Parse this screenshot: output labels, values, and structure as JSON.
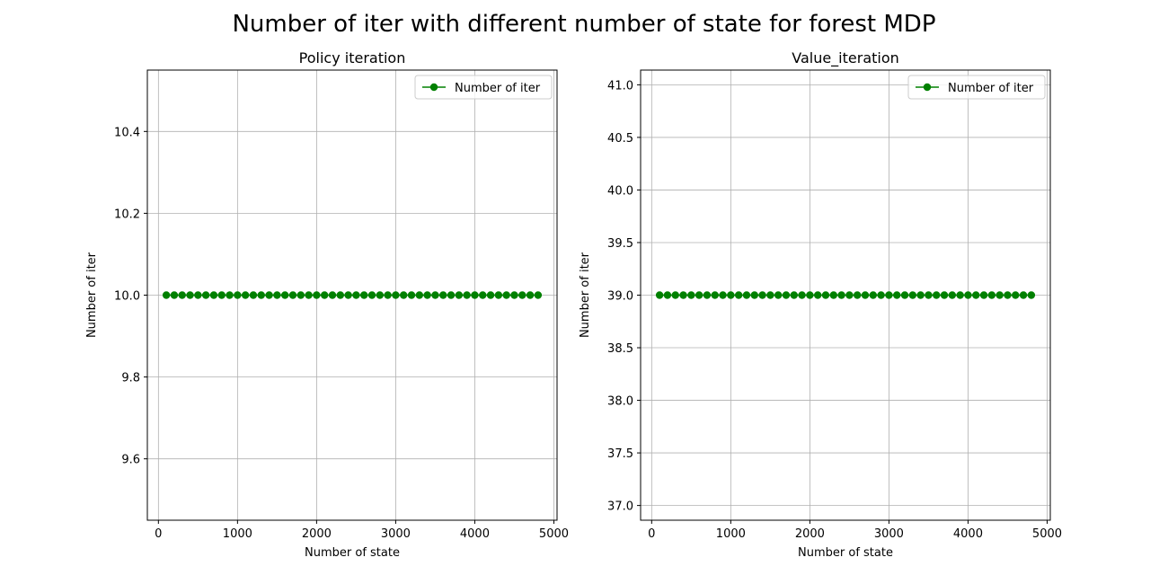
{
  "figure": {
    "suptitle": "Number of iter with different number of state for forest MDP"
  },
  "colors": {
    "series": "#008000",
    "grid": "#b0b0b0",
    "axis": "#000000"
  },
  "chart_data": [
    {
      "type": "line",
      "title": "Policy iteration",
      "xlabel": "Number of state",
      "ylabel": "Number of iter",
      "xlim": [
        -140,
        5040
      ],
      "ylim": [
        9.45,
        10.55
      ],
      "xticks": [
        0,
        1000,
        2000,
        3000,
        4000,
        5000
      ],
      "yticks": [
        9.6,
        9.8,
        10.0,
        10.2,
        10.4
      ],
      "ytick_labels": [
        "9.6",
        "9.8",
        "10.0",
        "10.2",
        "10.4"
      ],
      "grid": true,
      "legend": "upper-right",
      "series": [
        {
          "name": "Number of iter",
          "marker": "circle",
          "x": [
            100,
            200,
            300,
            400,
            500,
            600,
            700,
            800,
            900,
            1000,
            1100,
            1200,
            1300,
            1400,
            1500,
            1600,
            1700,
            1800,
            1900,
            2000,
            2100,
            2200,
            2300,
            2400,
            2500,
            2600,
            2700,
            2800,
            2900,
            3000,
            3100,
            3200,
            3300,
            3400,
            3500,
            3600,
            3700,
            3800,
            3900,
            4000,
            4100,
            4200,
            4300,
            4400,
            4500,
            4600,
            4700,
            4800
          ],
          "y": [
            10,
            10,
            10,
            10,
            10,
            10,
            10,
            10,
            10,
            10,
            10,
            10,
            10,
            10,
            10,
            10,
            10,
            10,
            10,
            10,
            10,
            10,
            10,
            10,
            10,
            10,
            10,
            10,
            10,
            10,
            10,
            10,
            10,
            10,
            10,
            10,
            10,
            10,
            10,
            10,
            10,
            10,
            10,
            10,
            10,
            10,
            10,
            10
          ]
        }
      ]
    },
    {
      "type": "line",
      "title": "Value_iteration",
      "xlabel": "Number of state",
      "ylabel": "Number of iter",
      "xlim": [
        -140,
        5040
      ],
      "ylim": [
        36.86,
        41.14
      ],
      "xticks": [
        0,
        1000,
        2000,
        3000,
        4000,
        5000
      ],
      "yticks": [
        37.0,
        37.5,
        38.0,
        38.5,
        39.0,
        39.5,
        40.0,
        40.5,
        41.0
      ],
      "ytick_labels": [
        "37.0",
        "37.5",
        "38.0",
        "38.5",
        "39.0",
        "39.5",
        "40.0",
        "40.5",
        "41.0"
      ],
      "grid": true,
      "legend": "upper-right",
      "series": [
        {
          "name": "Number of iter",
          "marker": "circle",
          "x": [
            100,
            200,
            300,
            400,
            500,
            600,
            700,
            800,
            900,
            1000,
            1100,
            1200,
            1300,
            1400,
            1500,
            1600,
            1700,
            1800,
            1900,
            2000,
            2100,
            2200,
            2300,
            2400,
            2500,
            2600,
            2700,
            2800,
            2900,
            3000,
            3100,
            3200,
            3300,
            3400,
            3500,
            3600,
            3700,
            3800,
            3900,
            4000,
            4100,
            4200,
            4300,
            4400,
            4500,
            4600,
            4700,
            4800
          ],
          "y": [
            39,
            39,
            39,
            39,
            39,
            39,
            39,
            39,
            39,
            39,
            39,
            39,
            39,
            39,
            39,
            39,
            39,
            39,
            39,
            39,
            39,
            39,
            39,
            39,
            39,
            39,
            39,
            39,
            39,
            39,
            39,
            39,
            39,
            39,
            39,
            39,
            39,
            39,
            39,
            39,
            39,
            39,
            39,
            39,
            39,
            39,
            39,
            39
          ]
        }
      ]
    }
  ]
}
